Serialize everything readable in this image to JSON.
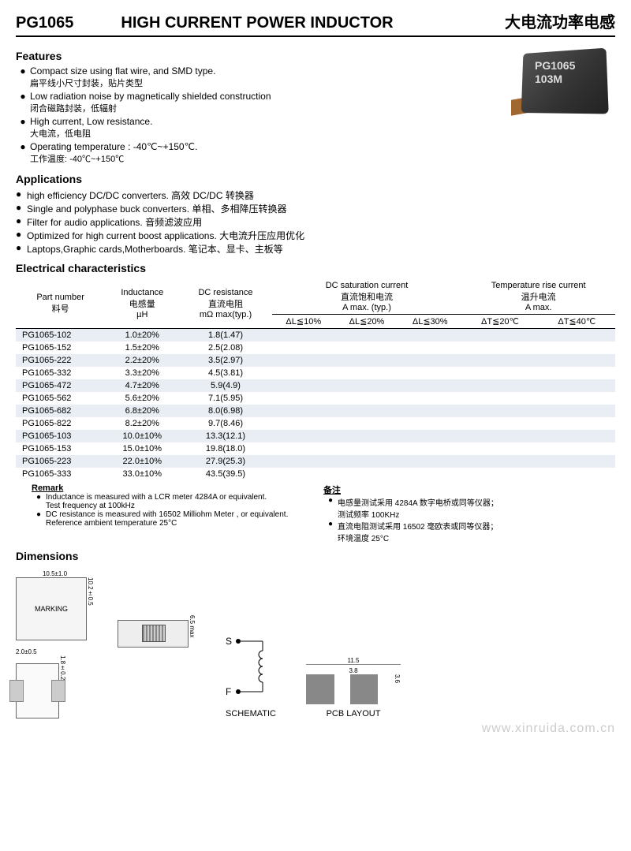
{
  "header": {
    "part": "PG1065",
    "title_en": "HIGH CURRENT POWER INDUCTOR",
    "title_cn": "大电流功率电感"
  },
  "features": {
    "title": "Features",
    "items": [
      {
        "en": "Compact size using flat wire, and SMD type.",
        "cn": "扁平线小尺寸封装，贴片类型"
      },
      {
        "en": "Low radiation noise by magnetically shielded construction",
        "cn": "闭合磁路封装，低辐射"
      },
      {
        "en": "High current, Low resistance.",
        "cn": "大电流，低电阻"
      },
      {
        "en": "Operating temperature : -40℃~+150℃.",
        "cn": "工作温度: -40℃~+150℃"
      }
    ]
  },
  "product_img": {
    "line1": "PG1065",
    "line2": "103M"
  },
  "applications": {
    "title": "Applications",
    "items": [
      "high efficiency DC/DC converters.  高效 DC/DC 转换器",
      "Single and polyphase buck converters.  单相、多相降压转换器",
      "Filter for audio applications.  音频滤波应用",
      "Optimized for high current boost applications.  大电流升压应用优化",
      "Laptops,Graphic cards,Motherboards.    笔记本、显卡、主板等"
    ]
  },
  "elec": {
    "title": "Electrical  characteristics",
    "cols": {
      "part_en": "Part number",
      "part_cn": "料号",
      "ind_en": "Inductance",
      "ind_cn": "电感量",
      "ind_unit": "µH",
      "dcr_en": "DC resistance",
      "dcr_cn": "直流电阻",
      "dcr_unit": "mΩ max(typ.)",
      "sat_en": "DC saturation current",
      "sat_cn": "直流饱和电流",
      "sat_unit": "A max. (typ.)",
      "sat1": "ΔL≦10%",
      "sat2": "ΔL≦20%",
      "sat3": "ΔL≦30%",
      "temp_en": "Temperature rise current",
      "temp_cn": "温升电流",
      "temp_unit": "A max.",
      "temp1": "ΔT≦20℃",
      "temp2": "ΔT≦40℃"
    },
    "rows": [
      {
        "pn": "PG1065-102",
        "ind": "1.0±20%",
        "dcr": "1.8(1.47)"
      },
      {
        "pn": "PG1065-152",
        "ind": "1.5±20%",
        "dcr": "2.5(2.08)"
      },
      {
        "pn": "PG1065-222",
        "ind": "2.2±20%",
        "dcr": "3.5(2.97)"
      },
      {
        "pn": "PG1065-332",
        "ind": "3.3±20%",
        "dcr": "4.5(3.81)"
      },
      {
        "pn": "PG1065-472",
        "ind": "4.7±20%",
        "dcr": "5.9(4.9)"
      },
      {
        "pn": "PG1065-562",
        "ind": "5.6±20%",
        "dcr": "7.1(5.95)"
      },
      {
        "pn": "PG1065-682",
        "ind": "6.8±20%",
        "dcr": "8.0(6.98)"
      },
      {
        "pn": "PG1065-822",
        "ind": "8.2±20%",
        "dcr": "9.7(8.46)"
      },
      {
        "pn": "PG1065-103",
        "ind": "10.0±10%",
        "dcr": "13.3(12.1)"
      },
      {
        "pn": "PG1065-153",
        "ind": "15.0±10%",
        "dcr": "19.8(18.0)"
      },
      {
        "pn": "PG1065-223",
        "ind": "22.0±10%",
        "dcr": "27.9(25.3)"
      },
      {
        "pn": "PG1065-333",
        "ind": "33.0±10%",
        "dcr": "43.5(39.5)"
      }
    ]
  },
  "remark": {
    "title_en": "Remark",
    "title_cn": "备注",
    "en1": "Inductance is measured with a LCR meter 4284A or equivalent.",
    "en1b": "Test frequency at 100kHz",
    "en2": "DC resistance is measured with 16502 Milliohm Meter , or equivalent.",
    "en2b": "Reference ambient temperature 25°C",
    "cn1": "电感量测试采用 4284A 数字电桥或同等仪器；",
    "cn1b": "测试频率 100KHz",
    "cn2": "直流电阻测试采用 16502 毫欧表或同等仪器；",
    "cn2b": "环境温度 25°C"
  },
  "dimensions": {
    "title": "Dimensions",
    "marking": "MARKING",
    "w": "10.5±1.0",
    "h": "10.2±0.5",
    "side_h": "6.5 max",
    "bot_w": "2.0±0.5",
    "bot_h": "1.8±0.2",
    "s": "S",
    "f": "F",
    "schematic": "SCHEMATIC",
    "pcb": "PCB LAYOUT",
    "pcb_w": "11.5",
    "pcb_pad_w": "3.8",
    "pcb_pad_h": "3.6"
  },
  "watermark": "www.xinruida.com.cn"
}
